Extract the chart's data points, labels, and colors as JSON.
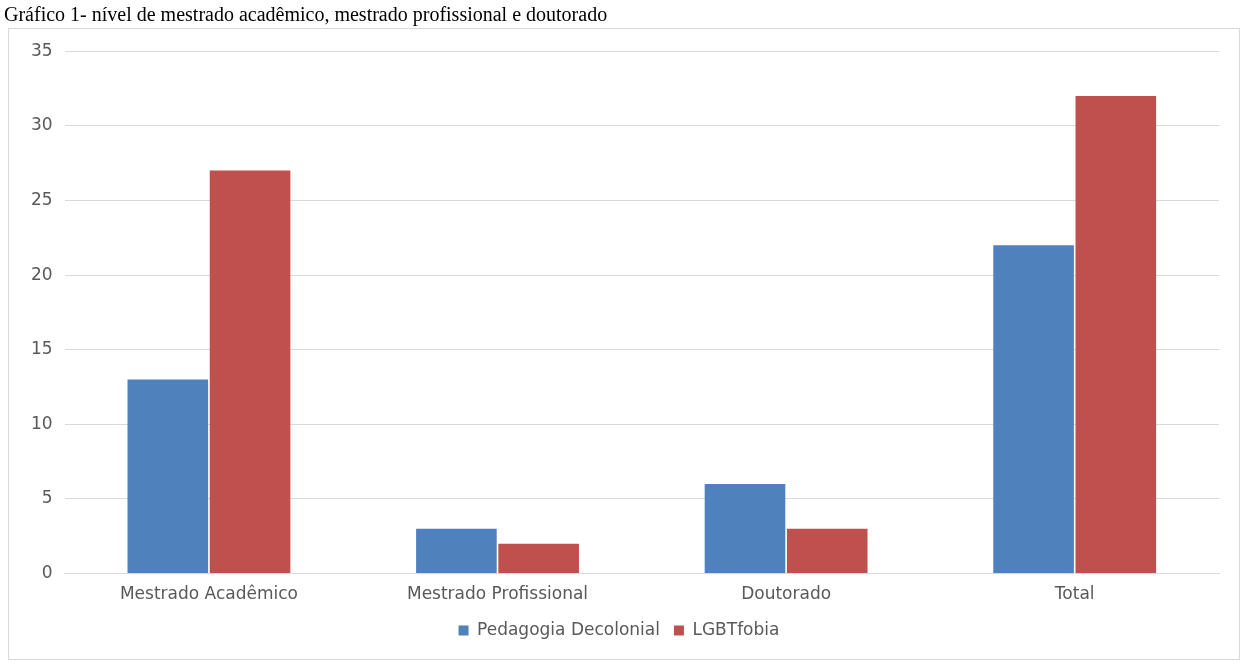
{
  "chart_data": {
    "type": "bar",
    "title": "Gráfico 1- nível de mestrado acadêmico, mestrado profissional e doutorado",
    "categories": [
      "Mestrado Acadêmico",
      "Mestrado Profissional",
      "Doutorado",
      "Total"
    ],
    "series": [
      {
        "name": "Pedagogia Decolonial",
        "color": "#4f81bd",
        "values": [
          13,
          3,
          6,
          22
        ]
      },
      {
        "name": "LGBTfobia",
        "color": "#c0504d",
        "values": [
          27,
          2,
          3,
          32
        ]
      }
    ],
    "ylim": [
      0,
      35
    ],
    "yticks": [
      0,
      5,
      10,
      15,
      20,
      25,
      30,
      35
    ],
    "grid": "y",
    "legend": "bottom"
  }
}
